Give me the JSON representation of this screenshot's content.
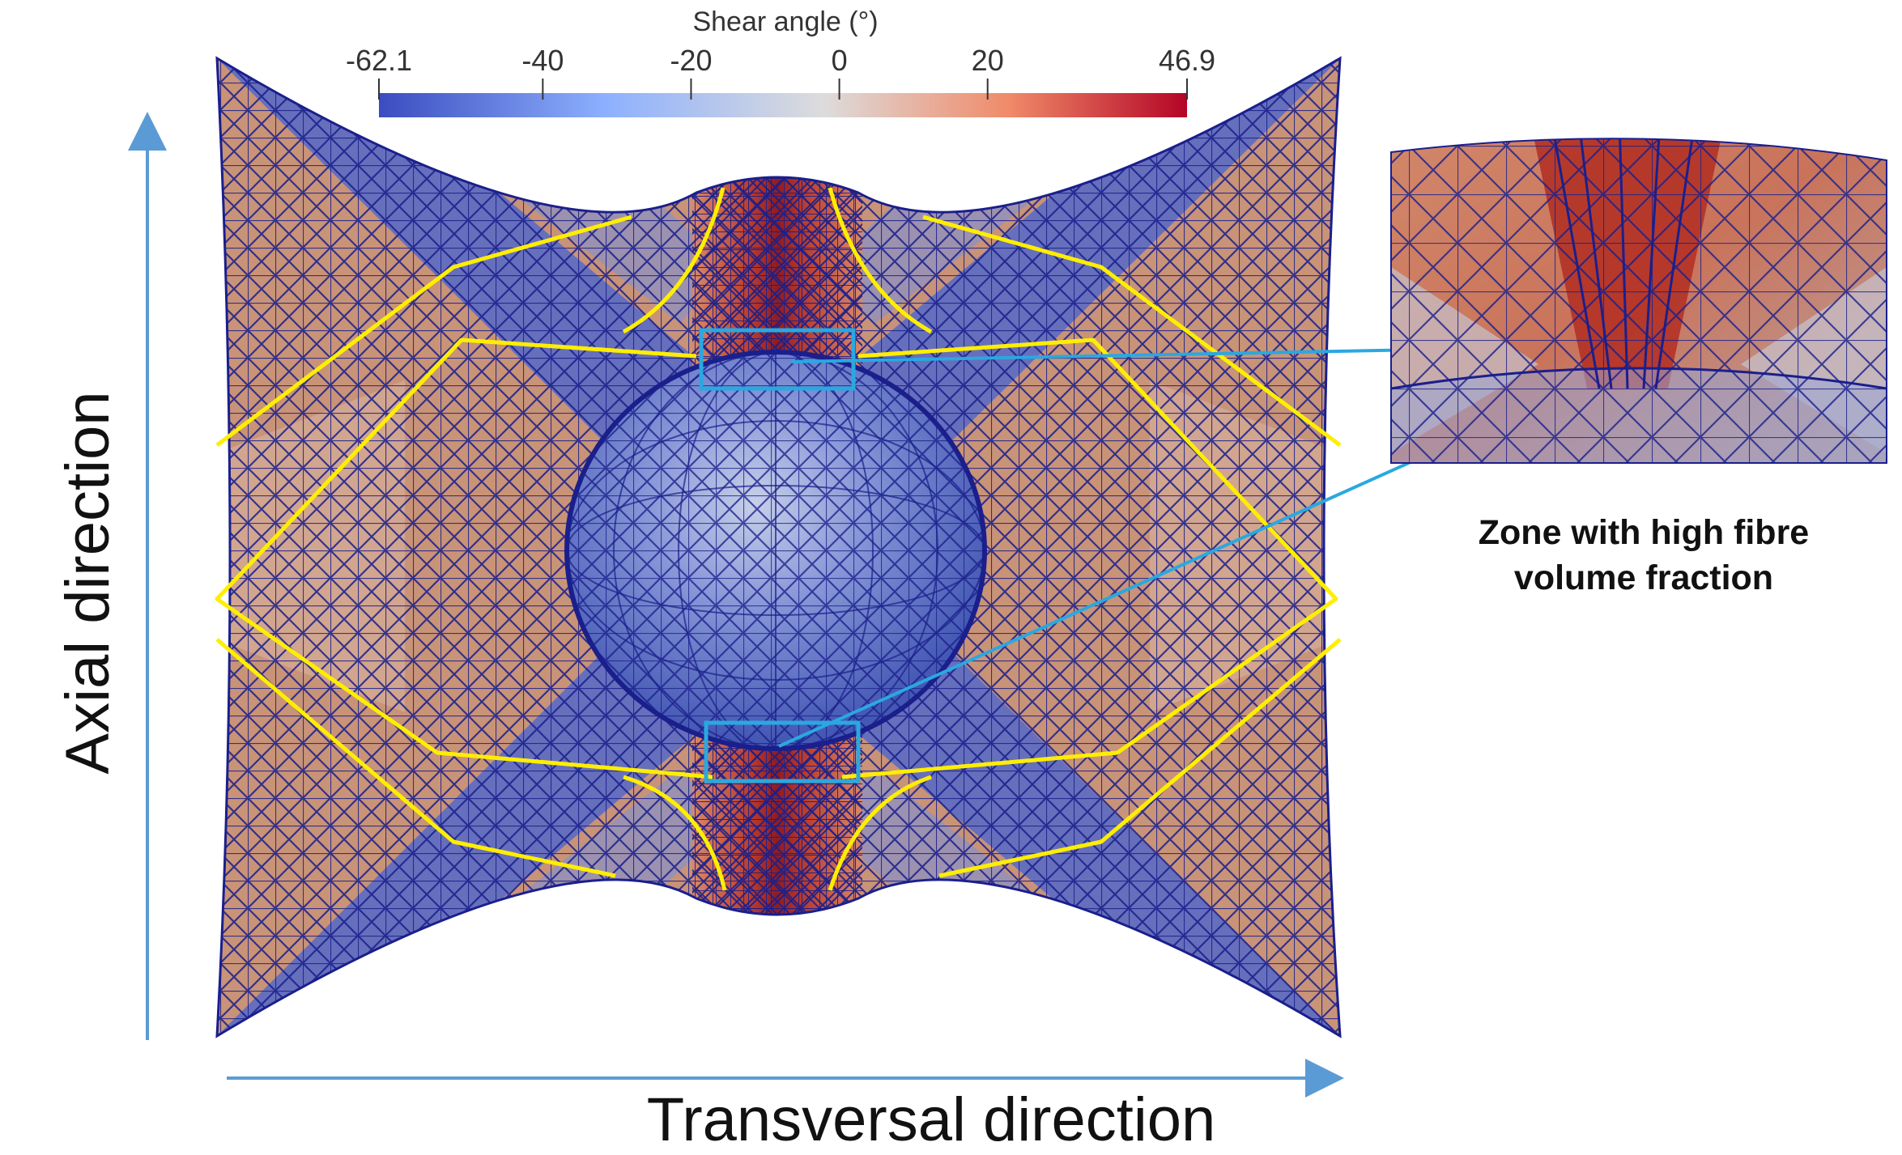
{
  "colorbar": {
    "title": "Shear angle (°)",
    "ticks": [
      "-62.1",
      "-40",
      "-20",
      "0",
      "20",
      "46.9"
    ],
    "tick_values": [
      -62.1,
      -40,
      -20,
      0,
      20,
      46.9
    ],
    "range": [
      -62.1,
      46.9
    ],
    "colormap": [
      "#3b4cc0",
      "#8db0fe",
      "#dddcdc",
      "#f49a7b",
      "#b40426"
    ]
  },
  "annotation": {
    "line1": "Zone with high fibre",
    "line2": "volume fraction"
  },
  "axes": {
    "axial": "Axial direction",
    "transversal": "Transversal direction"
  },
  "colors": {
    "mesh": "#1a1f8c",
    "contour": "#ffee00",
    "callout": "#2aa8e0",
    "arrow": "#5b9bd5",
    "high_shear": "#b5302a",
    "low_shear": "#4a63c9",
    "neutral": "#c9a08a"
  }
}
